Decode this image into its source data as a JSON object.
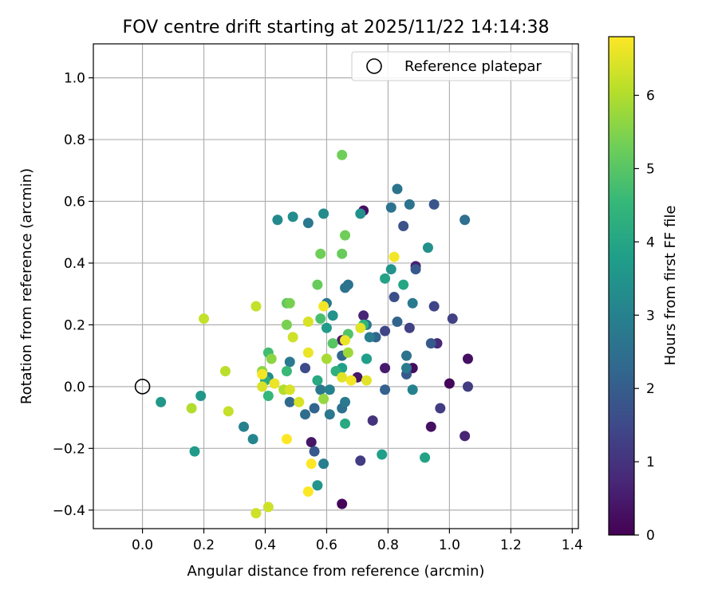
{
  "chart_data": {
    "type": "scatter",
    "title": "FOV centre drift starting at 2025/11/22 14:14:38",
    "xlabel": "Angular distance from reference (arcmin)",
    "ylabel": "Rotation from reference (arcmin)",
    "xlim": [
      -0.16,
      1.42
    ],
    "ylim": [
      -0.46,
      1.11
    ],
    "xticks": [
      0.0,
      0.2,
      0.4,
      0.6,
      0.8,
      1.0,
      1.2,
      1.4
    ],
    "xtick_labels": [
      "0.0",
      "0.2",
      "0.4",
      "0.6",
      "0.8",
      "1.0",
      "1.2",
      "1.4"
    ],
    "yticks": [
      -0.4,
      -0.2,
      0.0,
      0.2,
      0.4,
      0.6,
      0.8,
      1.0
    ],
    "ytick_labels": [
      "−0.4",
      "−0.2",
      "0.0",
      "0.2",
      "0.4",
      "0.6",
      "0.8",
      "1.0"
    ],
    "grid": true,
    "legend": {
      "position": "top-right",
      "label": "Reference platepar"
    },
    "reference_point": {
      "x": 0.0,
      "y": 0.0
    },
    "colorbar": {
      "label": "Hours from first FF file",
      "range": [
        0,
        6.8
      ],
      "ticks": [
        0,
        1,
        2,
        3,
        4,
        5,
        6
      ],
      "tick_labels": [
        "0",
        "1",
        "2",
        "3",
        "4",
        "5",
        "6"
      ],
      "colormap": "viridis",
      "color_stops": [
        "#440154",
        "#482878",
        "#3e4a89",
        "#31688e",
        "#26828e",
        "#1f9e89",
        "#35b779",
        "#6ece58",
        "#b5de2b",
        "#fde725"
      ]
    },
    "points": [
      {
        "x": 0.65,
        "y": -0.38,
        "t": 0.1
      },
      {
        "x": 0.72,
        "y": 0.57,
        "t": 0.3
      },
      {
        "x": 0.88,
        "y": 0.06,
        "t": 0.2
      },
      {
        "x": 0.94,
        "y": -0.13,
        "t": 0.3
      },
      {
        "x": 1.0,
        "y": 0.01,
        "t": 0.1
      },
      {
        "x": 1.06,
        "y": 0.09,
        "t": 0.3
      },
      {
        "x": 0.55,
        "y": -0.18,
        "t": 0.4
      },
      {
        "x": 0.7,
        "y": 0.03,
        "t": 0.4
      },
      {
        "x": 0.79,
        "y": 0.06,
        "t": 0.5
      },
      {
        "x": 0.65,
        "y": 0.15,
        "t": 0.5
      },
      {
        "x": 0.96,
        "y": 0.14,
        "t": 0.8
      },
      {
        "x": 0.89,
        "y": 0.39,
        "t": 0.6
      },
      {
        "x": 0.72,
        "y": 0.23,
        "t": 0.7
      },
      {
        "x": 1.05,
        "y": -0.16,
        "t": 0.7
      },
      {
        "x": 0.75,
        "y": -0.11,
        "t": 1.0
      },
      {
        "x": 0.71,
        "y": -0.24,
        "t": 1.2
      },
      {
        "x": 0.97,
        "y": -0.07,
        "t": 1.2
      },
      {
        "x": 1.06,
        "y": 0.0,
        "t": 1.2
      },
      {
        "x": 1.01,
        "y": 0.22,
        "t": 1.3
      },
      {
        "x": 0.95,
        "y": 0.26,
        "t": 1.4
      },
      {
        "x": 0.87,
        "y": 0.19,
        "t": 1.3
      },
      {
        "x": 0.79,
        "y": 0.18,
        "t": 1.4
      },
      {
        "x": 0.82,
        "y": 0.29,
        "t": 1.6
      },
      {
        "x": 0.53,
        "y": 0.06,
        "t": 1.5
      },
      {
        "x": 0.56,
        "y": -0.21,
        "t": 1.9
      },
      {
        "x": 0.95,
        "y": 0.59,
        "t": 1.8
      },
      {
        "x": 0.85,
        "y": 0.52,
        "t": 1.7
      },
      {
        "x": 0.89,
        "y": 0.38,
        "t": 1.9
      },
      {
        "x": 0.94,
        "y": 0.14,
        "t": 1.9
      },
      {
        "x": 0.86,
        "y": 0.04,
        "t": 1.9
      },
      {
        "x": 0.79,
        "y": -0.01,
        "t": 2.1
      },
      {
        "x": 0.83,
        "y": 0.21,
        "t": 2.2
      },
      {
        "x": 0.76,
        "y": 0.16,
        "t": 2.2
      },
      {
        "x": 0.65,
        "y": 0.1,
        "t": 2.3
      },
      {
        "x": 0.56,
        "y": -0.07,
        "t": 2.2
      },
      {
        "x": 0.48,
        "y": -0.05,
        "t": 2.3
      },
      {
        "x": 0.53,
        "y": -0.09,
        "t": 2.4
      },
      {
        "x": 0.65,
        "y": -0.07,
        "t": 2.5
      },
      {
        "x": 0.61,
        "y": -0.09,
        "t": 2.7
      },
      {
        "x": 0.6,
        "y": 0.27,
        "t": 2.8
      },
      {
        "x": 0.81,
        "y": 0.58,
        "t": 2.6
      },
      {
        "x": 0.83,
        "y": 0.64,
        "t": 2.6
      },
      {
        "x": 0.87,
        "y": 0.59,
        "t": 2.6
      },
      {
        "x": 1.05,
        "y": 0.54,
        "t": 2.5
      },
      {
        "x": 0.86,
        "y": 0.1,
        "t": 2.6
      },
      {
        "x": 0.66,
        "y": 0.32,
        "t": 2.6
      },
      {
        "x": 0.67,
        "y": 0.33,
        "t": 2.6
      },
      {
        "x": 0.73,
        "y": 0.2,
        "t": 2.7
      },
      {
        "x": 0.54,
        "y": 0.53,
        "t": 2.7
      },
      {
        "x": 0.48,
        "y": 0.08,
        "t": 2.8
      },
      {
        "x": 0.58,
        "y": -0.01,
        "t": 2.7
      },
      {
        "x": 0.66,
        "y": -0.05,
        "t": 2.8
      },
      {
        "x": 0.86,
        "y": 0.06,
        "t": 2.8
      },
      {
        "x": 0.88,
        "y": 0.27,
        "t": 2.8
      },
      {
        "x": 0.74,
        "y": 0.16,
        "t": 2.9
      },
      {
        "x": 0.59,
        "y": -0.25,
        "t": 2.9
      },
      {
        "x": 0.61,
        "y": -0.01,
        "t": 3.0
      },
      {
        "x": 0.88,
        "y": -0.01,
        "t": 3.0
      },
      {
        "x": 0.33,
        "y": -0.13,
        "t": 3.0
      },
      {
        "x": 0.36,
        "y": -0.17,
        "t": 3.1
      },
      {
        "x": 0.41,
        "y": 0.03,
        "t": 3.2
      },
      {
        "x": 0.44,
        "y": 0.54,
        "t": 3.2
      },
      {
        "x": 0.49,
        "y": 0.55,
        "t": 3.3
      },
      {
        "x": 0.59,
        "y": 0.56,
        "t": 3.3
      },
      {
        "x": 0.71,
        "y": 0.56,
        "t": 3.4
      },
      {
        "x": 0.93,
        "y": 0.45,
        "t": 3.4
      },
      {
        "x": 0.81,
        "y": 0.38,
        "t": 3.5
      },
      {
        "x": 0.73,
        "y": 0.09,
        "t": 3.4
      },
      {
        "x": 0.62,
        "y": 0.23,
        "t": 3.5
      },
      {
        "x": 0.57,
        "y": -0.32,
        "t": 3.5
      },
      {
        "x": 0.19,
        "y": -0.03,
        "t": 3.6
      },
      {
        "x": 0.06,
        "y": -0.05,
        "t": 3.6
      },
      {
        "x": 0.17,
        "y": -0.21,
        "t": 3.7
      },
      {
        "x": 0.6,
        "y": 0.19,
        "t": 3.7
      },
      {
        "x": 0.65,
        "y": 0.06,
        "t": 3.8
      },
      {
        "x": 0.73,
        "y": 0.09,
        "t": 3.8
      },
      {
        "x": 0.78,
        "y": -0.22,
        "t": 3.8
      },
      {
        "x": 0.92,
        "y": -0.23,
        "t": 3.9
      },
      {
        "x": 0.79,
        "y": 0.35,
        "t": 3.9
      },
      {
        "x": 0.85,
        "y": 0.33,
        "t": 4.0
      },
      {
        "x": 0.66,
        "y": -0.12,
        "t": 4.1
      },
      {
        "x": 0.57,
        "y": 0.02,
        "t": 4.1
      },
      {
        "x": 0.4,
        "y": 0.02,
        "t": 4.2
      },
      {
        "x": 0.63,
        "y": 0.05,
        "t": 4.3
      },
      {
        "x": 0.72,
        "y": 0.2,
        "t": 4.4
      },
      {
        "x": 0.41,
        "y": -0.03,
        "t": 4.5
      },
      {
        "x": 0.47,
        "y": 0.05,
        "t": 4.6
      },
      {
        "x": 0.41,
        "y": 0.11,
        "t": 4.7
      },
      {
        "x": 0.58,
        "y": 0.22,
        "t": 4.8
      },
      {
        "x": 0.67,
        "y": 0.17,
        "t": 4.9
      },
      {
        "x": 0.62,
        "y": 0.14,
        "t": 5.0
      },
      {
        "x": 0.47,
        "y": 0.27,
        "t": 5.1
      },
      {
        "x": 0.57,
        "y": 0.33,
        "t": 5.2
      },
      {
        "x": 0.65,
        "y": 0.43,
        "t": 5.2
      },
      {
        "x": 0.58,
        "y": 0.43,
        "t": 5.3
      },
      {
        "x": 0.66,
        "y": 0.49,
        "t": 5.3
      },
      {
        "x": 0.65,
        "y": 0.75,
        "t": 5.3
      },
      {
        "x": 0.47,
        "y": 0.2,
        "t": 5.4
      },
      {
        "x": 0.48,
        "y": 0.27,
        "t": 5.4
      },
      {
        "x": 0.39,
        "y": 0.05,
        "t": 5.6
      },
      {
        "x": 0.42,
        "y": 0.09,
        "t": 5.6
      },
      {
        "x": 0.59,
        "y": -0.04,
        "t": 5.7
      },
      {
        "x": 0.67,
        "y": 0.11,
        "t": 5.8
      },
      {
        "x": 0.6,
        "y": 0.09,
        "t": 5.9
      },
      {
        "x": 0.46,
        "y": -0.01,
        "t": 6.0
      },
      {
        "x": 0.16,
        "y": -0.07,
        "t": 6.0
      },
      {
        "x": 0.27,
        "y": 0.05,
        "t": 6.1
      },
      {
        "x": 0.28,
        "y": -0.08,
        "t": 6.2
      },
      {
        "x": 0.2,
        "y": 0.22,
        "t": 6.2
      },
      {
        "x": 0.37,
        "y": 0.26,
        "t": 6.2
      },
      {
        "x": 0.37,
        "y": -0.41,
        "t": 6.3
      },
      {
        "x": 0.41,
        "y": -0.39,
        "t": 6.3
      },
      {
        "x": 0.49,
        "y": 0.16,
        "t": 6.3
      },
      {
        "x": 0.39,
        "y": 0.0,
        "t": 6.4
      },
      {
        "x": 0.48,
        "y": -0.01,
        "t": 6.4
      },
      {
        "x": 0.51,
        "y": -0.05,
        "t": 6.4
      },
      {
        "x": 0.54,
        "y": 0.21,
        "t": 6.4
      },
      {
        "x": 0.71,
        "y": 0.19,
        "t": 6.5
      },
      {
        "x": 0.73,
        "y": 0.02,
        "t": 6.5
      },
      {
        "x": 0.65,
        "y": 0.03,
        "t": 6.5
      },
      {
        "x": 0.54,
        "y": 0.11,
        "t": 6.6
      },
      {
        "x": 0.43,
        "y": 0.01,
        "t": 6.6
      },
      {
        "x": 0.66,
        "y": 0.15,
        "t": 6.6
      },
      {
        "x": 0.59,
        "y": 0.26,
        "t": 6.7
      },
      {
        "x": 0.82,
        "y": 0.42,
        "t": 6.7
      },
      {
        "x": 0.68,
        "y": 0.02,
        "t": 6.7
      },
      {
        "x": 0.39,
        "y": 0.04,
        "t": 6.7
      },
      {
        "x": 0.47,
        "y": -0.17,
        "t": 6.8
      },
      {
        "x": 0.55,
        "y": -0.25,
        "t": 6.8
      },
      {
        "x": 0.54,
        "y": -0.34,
        "t": 6.8
      }
    ]
  }
}
